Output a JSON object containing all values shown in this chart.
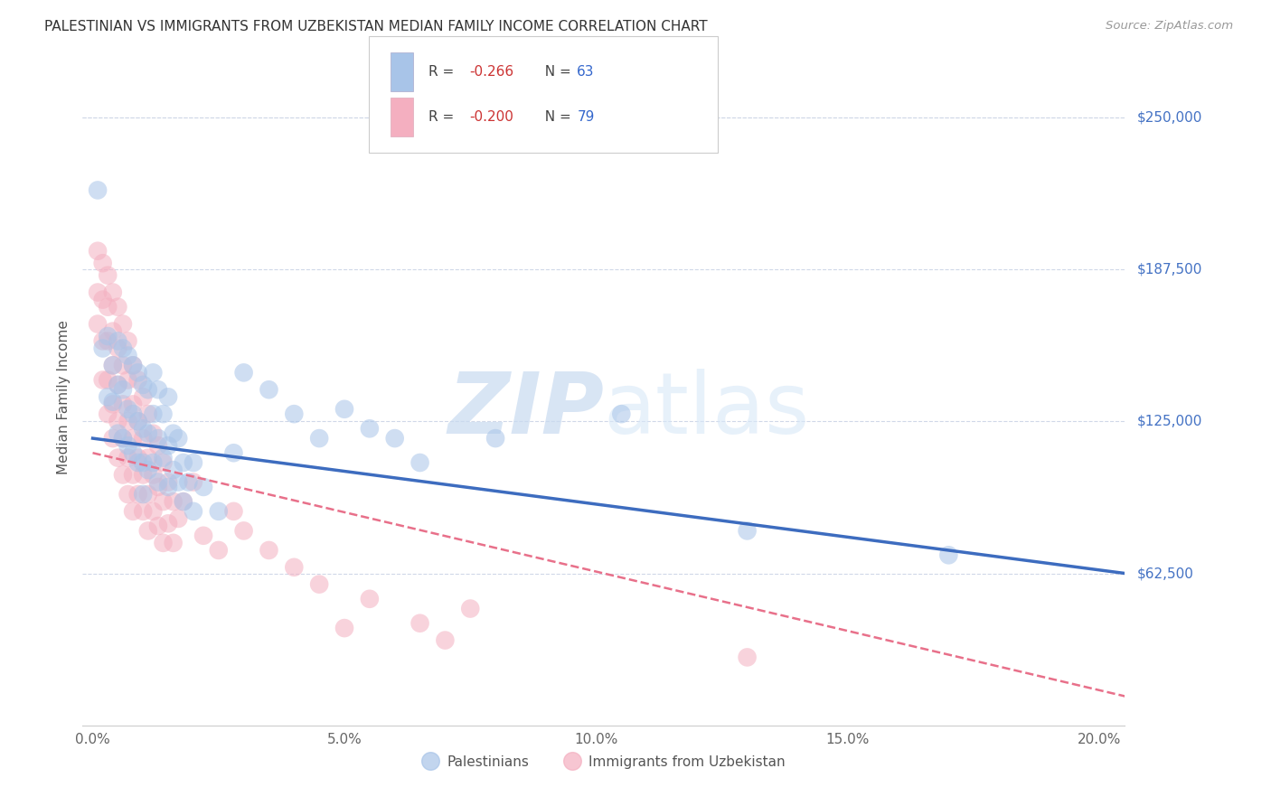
{
  "title": "PALESTINIAN VS IMMIGRANTS FROM UZBEKISTAN MEDIAN FAMILY INCOME CORRELATION CHART",
  "source": "Source: ZipAtlas.com",
  "ylabel": "Median Family Income",
  "xlabel_ticks": [
    "0.0%",
    "5.0%",
    "10.0%",
    "15.0%",
    "20.0%"
  ],
  "xlabel_vals": [
    0.0,
    0.05,
    0.1,
    0.15,
    0.2
  ],
  "ytick_labels": [
    "$62,500",
    "$125,000",
    "$187,500",
    "$250,000"
  ],
  "ytick_vals": [
    62500,
    125000,
    187500,
    250000
  ],
  "ylim": [
    0,
    270000
  ],
  "xlim": [
    -0.002,
    0.205
  ],
  "color_blue": "#a8c4e8",
  "color_pink": "#f4afc0",
  "line_blue": "#3d6cbf",
  "line_pink": "#e8708a",
  "watermark_zip": "ZIP",
  "watermark_atlas": "atlas",
  "legend_label1": "Palestinians",
  "legend_label2": "Immigrants from Uzbekistan",
  "blue_scatter": [
    [
      0.001,
      220000
    ],
    [
      0.002,
      155000
    ],
    [
      0.003,
      160000
    ],
    [
      0.003,
      135000
    ],
    [
      0.004,
      148000
    ],
    [
      0.004,
      133000
    ],
    [
      0.005,
      158000
    ],
    [
      0.005,
      140000
    ],
    [
      0.005,
      120000
    ],
    [
      0.006,
      155000
    ],
    [
      0.006,
      138000
    ],
    [
      0.006,
      118000
    ],
    [
      0.007,
      152000
    ],
    [
      0.007,
      130000
    ],
    [
      0.007,
      115000
    ],
    [
      0.008,
      148000
    ],
    [
      0.008,
      128000
    ],
    [
      0.008,
      112000
    ],
    [
      0.009,
      145000
    ],
    [
      0.009,
      125000
    ],
    [
      0.009,
      108000
    ],
    [
      0.01,
      140000
    ],
    [
      0.01,
      122000
    ],
    [
      0.01,
      108000
    ],
    [
      0.01,
      95000
    ],
    [
      0.011,
      138000
    ],
    [
      0.011,
      120000
    ],
    [
      0.011,
      105000
    ],
    [
      0.012,
      145000
    ],
    [
      0.012,
      128000
    ],
    [
      0.012,
      108000
    ],
    [
      0.013,
      138000
    ],
    [
      0.013,
      118000
    ],
    [
      0.013,
      100000
    ],
    [
      0.014,
      128000
    ],
    [
      0.014,
      110000
    ],
    [
      0.015,
      135000
    ],
    [
      0.015,
      115000
    ],
    [
      0.015,
      98000
    ],
    [
      0.016,
      120000
    ],
    [
      0.016,
      105000
    ],
    [
      0.017,
      118000
    ],
    [
      0.017,
      100000
    ],
    [
      0.018,
      108000
    ],
    [
      0.018,
      92000
    ],
    [
      0.019,
      100000
    ],
    [
      0.02,
      108000
    ],
    [
      0.02,
      88000
    ],
    [
      0.022,
      98000
    ],
    [
      0.025,
      88000
    ],
    [
      0.028,
      112000
    ],
    [
      0.03,
      145000
    ],
    [
      0.035,
      138000
    ],
    [
      0.04,
      128000
    ],
    [
      0.045,
      118000
    ],
    [
      0.05,
      130000
    ],
    [
      0.055,
      122000
    ],
    [
      0.06,
      118000
    ],
    [
      0.065,
      108000
    ],
    [
      0.08,
      118000
    ],
    [
      0.105,
      128000
    ],
    [
      0.13,
      80000
    ],
    [
      0.17,
      70000
    ]
  ],
  "pink_scatter": [
    [
      0.001,
      195000
    ],
    [
      0.001,
      178000
    ],
    [
      0.001,
      165000
    ],
    [
      0.002,
      190000
    ],
    [
      0.002,
      175000
    ],
    [
      0.002,
      158000
    ],
    [
      0.002,
      142000
    ],
    [
      0.003,
      185000
    ],
    [
      0.003,
      172000
    ],
    [
      0.003,
      158000
    ],
    [
      0.003,
      142000
    ],
    [
      0.003,
      128000
    ],
    [
      0.004,
      178000
    ],
    [
      0.004,
      162000
    ],
    [
      0.004,
      148000
    ],
    [
      0.004,
      132000
    ],
    [
      0.004,
      118000
    ],
    [
      0.005,
      172000
    ],
    [
      0.005,
      155000
    ],
    [
      0.005,
      140000
    ],
    [
      0.005,
      125000
    ],
    [
      0.005,
      110000
    ],
    [
      0.006,
      165000
    ],
    [
      0.006,
      148000
    ],
    [
      0.006,
      132000
    ],
    [
      0.006,
      118000
    ],
    [
      0.006,
      103000
    ],
    [
      0.007,
      158000
    ],
    [
      0.007,
      142000
    ],
    [
      0.007,
      125000
    ],
    [
      0.007,
      110000
    ],
    [
      0.007,
      95000
    ],
    [
      0.008,
      148000
    ],
    [
      0.008,
      132000
    ],
    [
      0.008,
      118000
    ],
    [
      0.008,
      103000
    ],
    [
      0.008,
      88000
    ],
    [
      0.009,
      142000
    ],
    [
      0.009,
      125000
    ],
    [
      0.009,
      110000
    ],
    [
      0.009,
      95000
    ],
    [
      0.01,
      135000
    ],
    [
      0.01,
      118000
    ],
    [
      0.01,
      103000
    ],
    [
      0.01,
      88000
    ],
    [
      0.011,
      128000
    ],
    [
      0.011,
      110000
    ],
    [
      0.011,
      95000
    ],
    [
      0.011,
      80000
    ],
    [
      0.012,
      120000
    ],
    [
      0.012,
      103000
    ],
    [
      0.012,
      88000
    ],
    [
      0.013,
      115000
    ],
    [
      0.013,
      98000
    ],
    [
      0.013,
      82000
    ],
    [
      0.014,
      108000
    ],
    [
      0.014,
      92000
    ],
    [
      0.014,
      75000
    ],
    [
      0.015,
      100000
    ],
    [
      0.015,
      83000
    ],
    [
      0.016,
      92000
    ],
    [
      0.016,
      75000
    ],
    [
      0.017,
      85000
    ],
    [
      0.018,
      92000
    ],
    [
      0.02,
      100000
    ],
    [
      0.022,
      78000
    ],
    [
      0.025,
      72000
    ],
    [
      0.028,
      88000
    ],
    [
      0.03,
      80000
    ],
    [
      0.035,
      72000
    ],
    [
      0.04,
      65000
    ],
    [
      0.045,
      58000
    ],
    [
      0.05,
      40000
    ],
    [
      0.055,
      52000
    ],
    [
      0.065,
      42000
    ],
    [
      0.07,
      35000
    ],
    [
      0.075,
      48000
    ],
    [
      0.13,
      28000
    ]
  ],
  "blue_line_x": [
    0.0,
    0.205
  ],
  "blue_line_y": [
    118000,
    62500
  ],
  "pink_line_x": [
    0.0,
    0.205
  ],
  "pink_line_y": [
    112000,
    12000
  ],
  "background_color": "#ffffff",
  "grid_color": "#d0d8e8"
}
